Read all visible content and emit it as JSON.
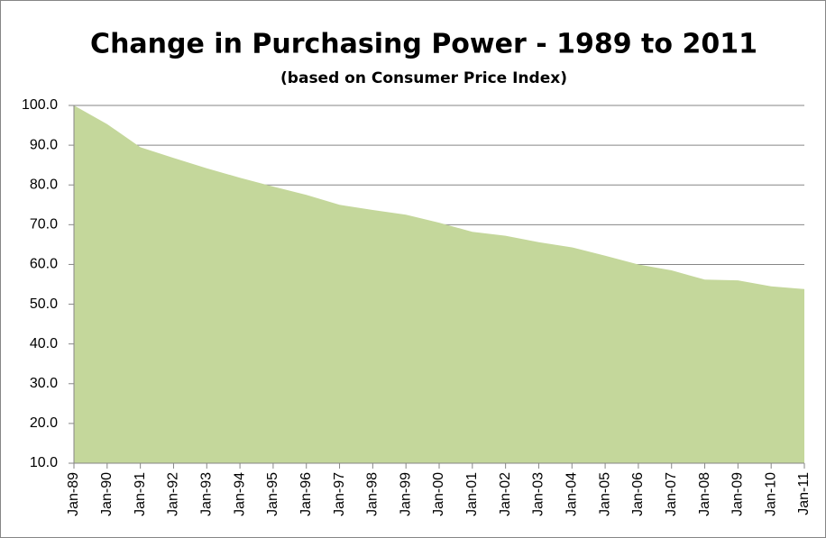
{
  "chart_data": {
    "type": "area",
    "title": "Change in Purchasing Power - 1989 to 2011",
    "subtitle": "(based on Consumer Price Index)",
    "categories": [
      "Jan-89",
      "Jan-90",
      "Jan-91",
      "Jan-92",
      "Jan-93",
      "Jan-94",
      "Jan-95",
      "Jan-96",
      "Jan-97",
      "Jan-98",
      "Jan-99",
      "Jan-00",
      "Jan-01",
      "Jan-02",
      "Jan-03",
      "Jan-04",
      "Jan-05",
      "Jan-06",
      "Jan-07",
      "Jan-08",
      "Jan-09",
      "Jan-10",
      "Jan-11"
    ],
    "values": [
      100,
      95.3,
      89.5,
      86.8,
      84.2,
      81.8,
      79.6,
      77.5,
      75.0,
      73.7,
      72.5,
      70.5,
      68.2,
      67.2,
      65.6,
      64.3,
      62.2,
      60.0,
      58.5,
      56.2,
      56.0,
      54.5,
      53.8
    ],
    "color": "#c4d79b",
    "ylim": [
      10,
      100
    ],
    "yticks": [
      {
        "value": 10,
        "label": "10.0"
      },
      {
        "value": 20,
        "label": "20.0"
      },
      {
        "value": 30,
        "label": "30.0"
      },
      {
        "value": 40,
        "label": "40.0"
      },
      {
        "value": 50,
        "label": "50.0"
      },
      {
        "value": 60,
        "label": "60.0"
      },
      {
        "value": 70,
        "label": "70.0"
      },
      {
        "value": 80,
        "label": "80.0"
      },
      {
        "value": 90,
        "label": "90.0"
      },
      {
        "value": 100,
        "label": "100.0"
      }
    ],
    "grid": true
  }
}
